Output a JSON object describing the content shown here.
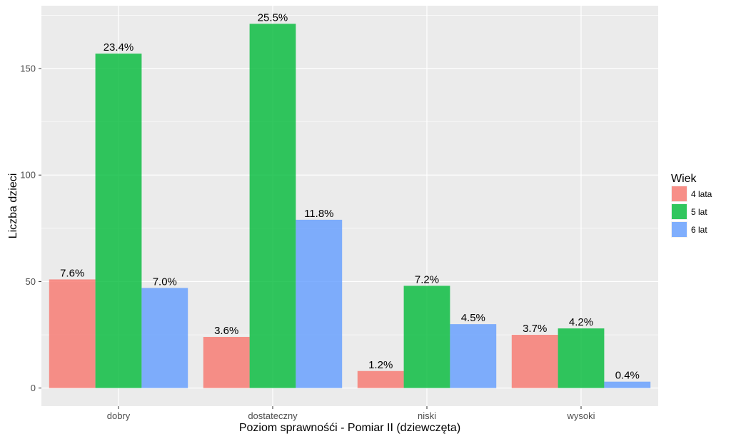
{
  "chart_data": {
    "type": "bar",
    "categories": [
      "dobry",
      "dostateczny",
      "niski",
      "wysoki"
    ],
    "series": [
      {
        "name": "4 lata",
        "color": "#F8766D",
        "values": [
          51,
          24,
          8,
          25
        ],
        "labels": [
          "7.6%",
          "3.6%",
          "1.2%",
          "3.7%"
        ]
      },
      {
        "name": "5 lat",
        "color": "#00BA38",
        "values": [
          157,
          171,
          48,
          28
        ],
        "labels": [
          "23.4%",
          "25.5%",
          "7.2%",
          "4.2%"
        ]
      },
      {
        "name": "6 lat",
        "color": "#619CFF",
        "values": [
          47,
          79,
          30,
          3
        ],
        "labels": [
          "7.0%",
          "11.8%",
          "4.5%",
          "0.4%"
        ]
      }
    ],
    "xlabel": "Poziom sprawnośći - Pomiar II (dziewczęta)",
    "ylabel": "Liczba dzieci",
    "yticks": [
      0,
      50,
      100,
      150
    ],
    "ylim": [
      -8.5,
      179.5
    ],
    "legend_title": "Wiek",
    "legend_position": "right",
    "grid": true,
    "panel_color": "#EBEBEB",
    "bar_opacity": 0.8
  }
}
